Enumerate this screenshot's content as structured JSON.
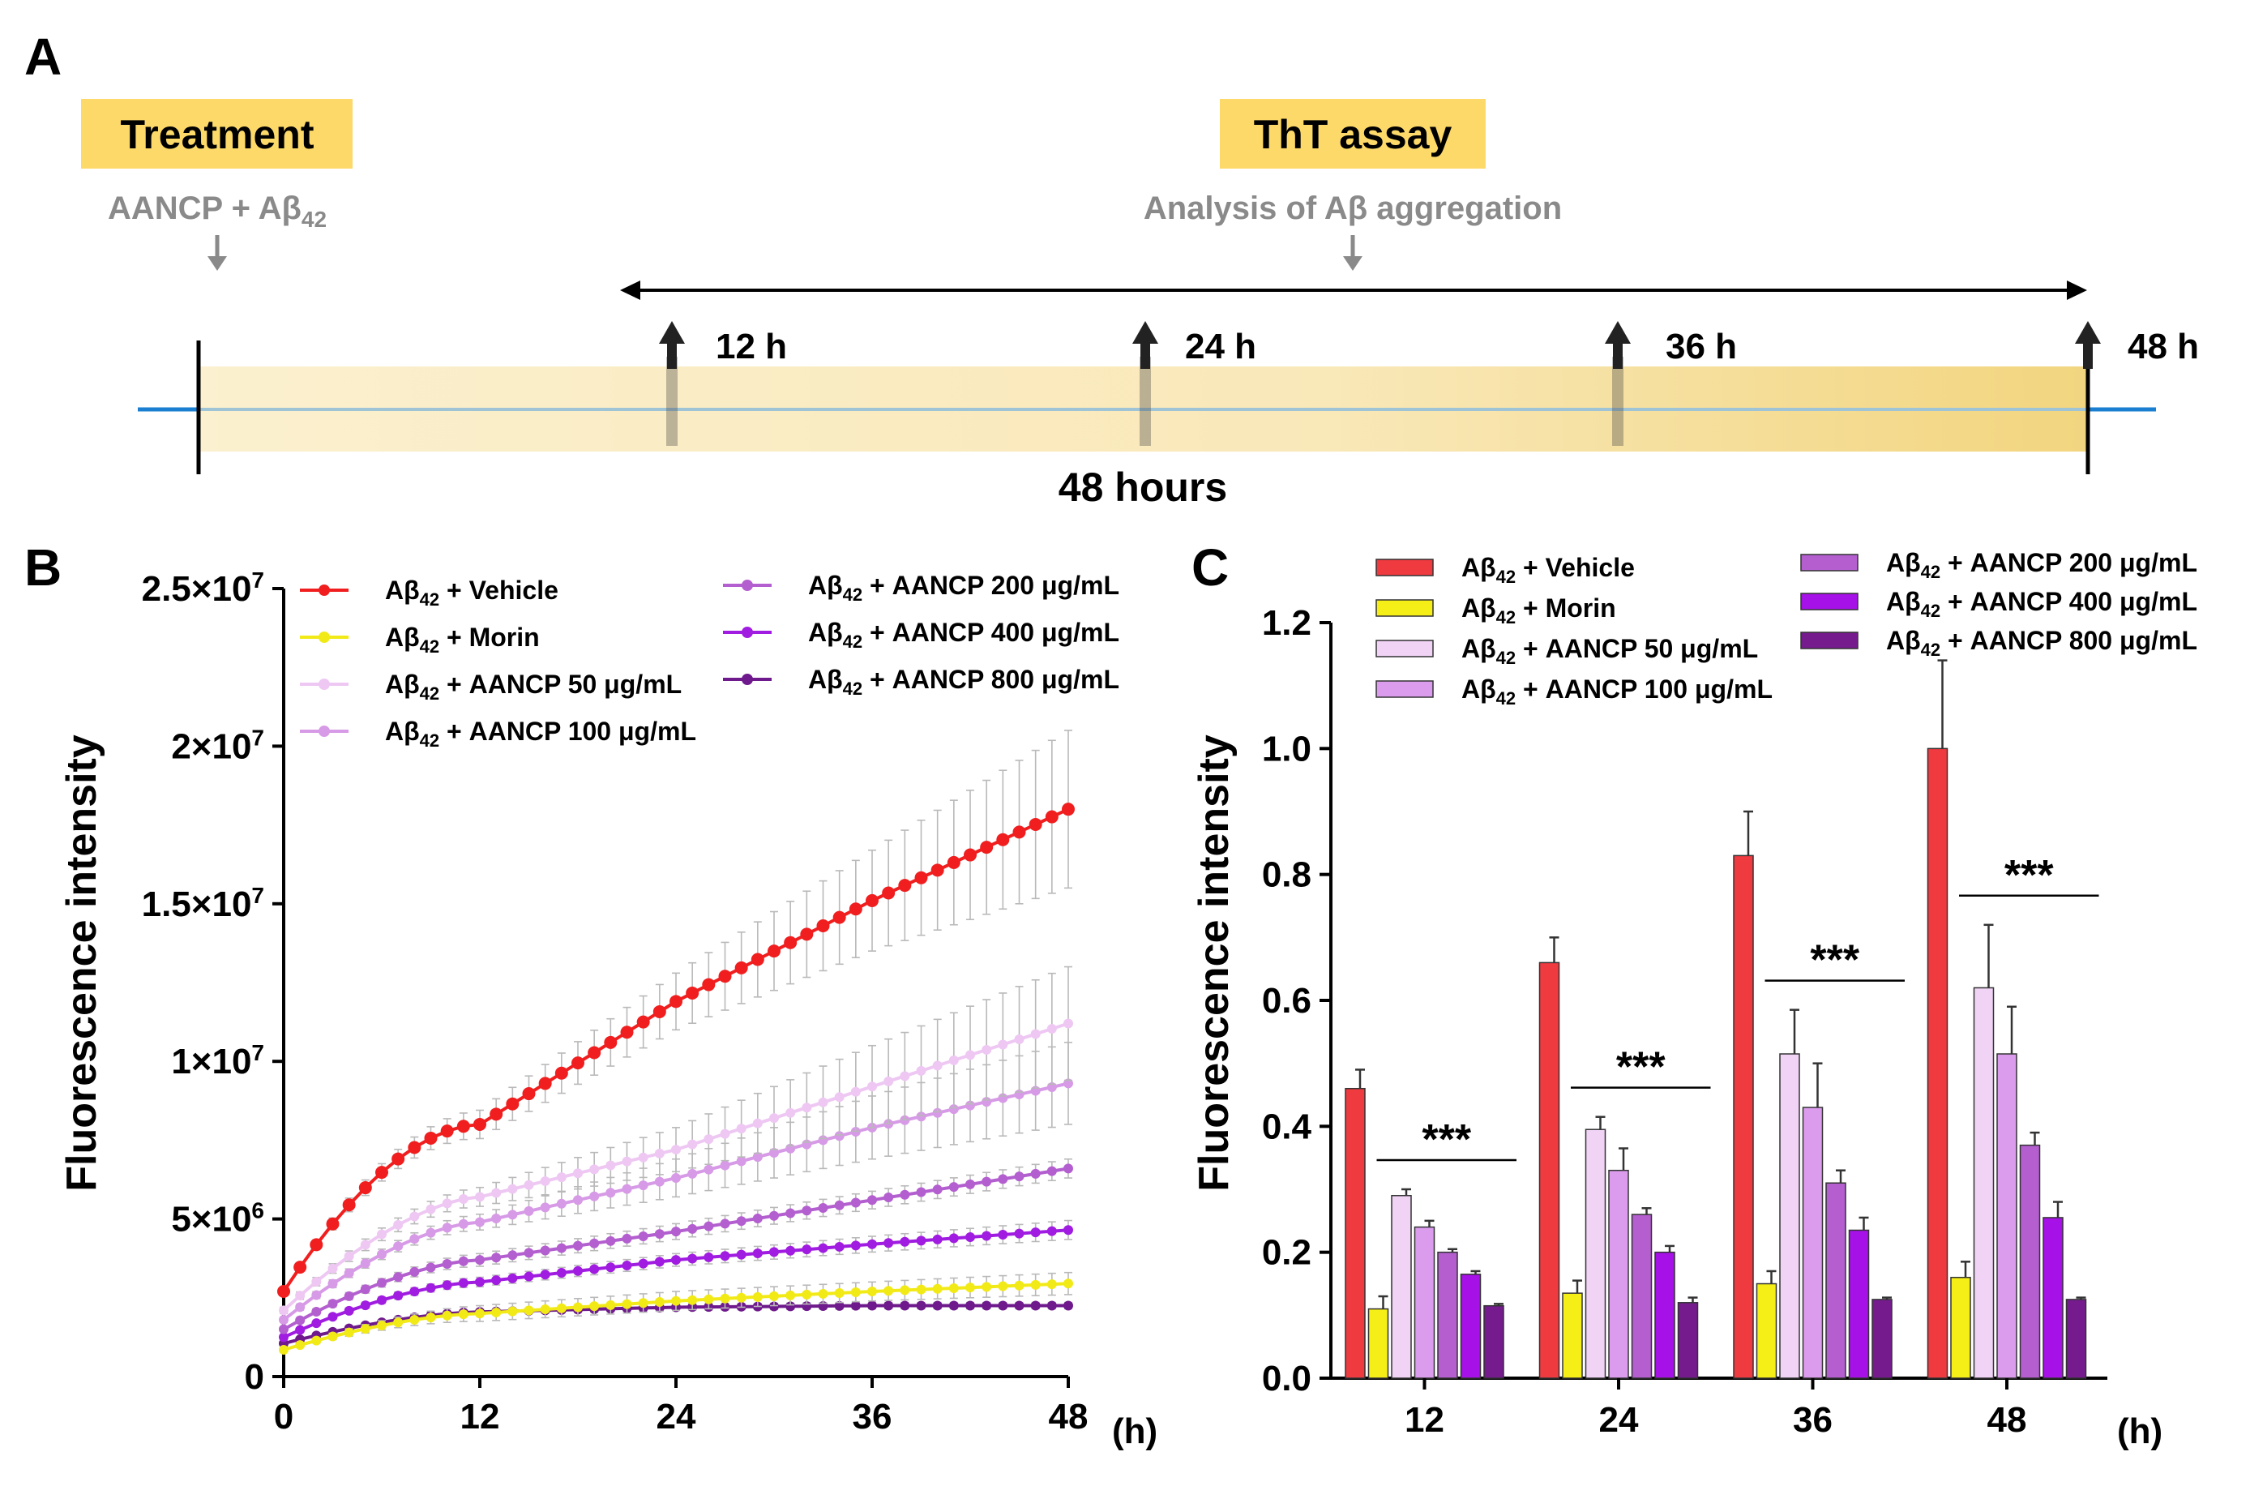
{
  "panel_a": {
    "letter": "A",
    "treatment_label": "Treatment",
    "treatment_note_main": "AANCP + Aβ",
    "treatment_note_sub": "42",
    "assay_label": "ThT assay",
    "assay_note": "Analysis of Aβ aggregation",
    "duration_label": "48 hours",
    "timepoints": [
      "12 h",
      "24 h",
      "36 h",
      "48 h"
    ],
    "colors": {
      "highlight": "#fdd96a",
      "bar_light": "#fbf0cf",
      "bar_dark": "#f2d57f",
      "baseline": "#1a7fd0",
      "gray": "#8a8a8a"
    }
  },
  "chart_data": [
    {
      "id": "B",
      "type": "line",
      "letter": "B",
      "title": "",
      "xlabel": "(h)",
      "ylabel": "Fluorescence intensity",
      "x": [
        0,
        12,
        24,
        36,
        48
      ],
      "xticks": [
        "0",
        "12",
        "24",
        "36",
        "48"
      ],
      "xlim": [
        0,
        48
      ],
      "ylim": [
        0,
        25000000
      ],
      "yticks": [
        {
          "value": 0,
          "base": "0",
          "exp": ""
        },
        {
          "value": 5000000,
          "base": "5×10",
          "exp": "6"
        },
        {
          "value": 10000000,
          "base": "1×10",
          "exp": "7"
        },
        {
          "value": 15000000,
          "base": "1.5×10",
          "exp": "7"
        },
        {
          "value": 20000000,
          "base": "2×10",
          "exp": "7"
        },
        {
          "value": 25000000,
          "base": "2.5×10",
          "exp": "7"
        }
      ],
      "n_points": 49,
      "series": [
        {
          "name": "Vehicle",
          "label_pre": "Aβ",
          "label_sub": "42",
          "label_post": " + Vehicle",
          "color": "#f01e1e",
          "values": [
            2700000,
            8000000,
            11900000,
            15100000,
            18000000
          ],
          "err": [
            100000,
            450000,
            900000,
            1600000,
            2500000
          ]
        },
        {
          "name": "Morin",
          "label_pre": "Aβ",
          "label_sub": "42",
          "label_post": " + Morin",
          "color": "#f2ea16",
          "values": [
            850000,
            2000000,
            2400000,
            2700000,
            2950000
          ],
          "err": [
            50000,
            250000,
            300000,
            300000,
            350000
          ]
        },
        {
          "name": "AANCP 50",
          "label_pre": "Aβ",
          "label_sub": "42",
          "label_post": " + AANCP 50 μg/mL",
          "color": "#eec8f3",
          "values": [
            2100000,
            5700000,
            7200000,
            9200000,
            11200000
          ],
          "err": [
            100000,
            300000,
            700000,
            1300000,
            1800000
          ]
        },
        {
          "name": "AANCP 100",
          "label_pre": "Aβ",
          "label_sub": "42",
          "label_post": " + AANCP 100 μg/mL",
          "color": "#d79ae6",
          "values": [
            1800000,
            4900000,
            6300000,
            7900000,
            9300000
          ],
          "err": [
            80000,
            250000,
            600000,
            1000000,
            1300000
          ]
        },
        {
          "name": "AANCP 200",
          "label_pre": "Aβ",
          "label_sub": "42",
          "label_post": " + AANCP 200 μg/mL",
          "color": "#b35fcf",
          "values": [
            1500000,
            3700000,
            4600000,
            5600000,
            6600000
          ],
          "err": [
            70000,
            200000,
            250000,
            280000,
            300000
          ]
        },
        {
          "name": "AANCP 400",
          "label_pre": "Aβ",
          "label_sub": "42",
          "label_post": " + AANCP 400 μg/mL",
          "color": "#a01ce0",
          "values": [
            1250000,
            3000000,
            3700000,
            4200000,
            4650000
          ],
          "err": [
            60000,
            150000,
            200000,
            250000,
            300000
          ]
        },
        {
          "name": "AANCP 800",
          "label_pre": "Aβ",
          "label_sub": "42",
          "label_post": " + AANCP 800 μg/mL",
          "color": "#6e198c",
          "values": [
            1050000,
            2050000,
            2200000,
            2250000,
            2250000
          ],
          "err": [
            40000,
            80000,
            100000,
            100000,
            100000
          ]
        }
      ]
    },
    {
      "id": "C",
      "type": "bar",
      "letter": "C",
      "title": "",
      "xlabel": "(h)",
      "ylabel": "Fluorescence intensity",
      "categories": [
        "12",
        "24",
        "36",
        "48"
      ],
      "ylim": [
        0,
        1.2
      ],
      "yticks": [
        "0.0",
        "0.2",
        "0.4",
        "0.6",
        "0.8",
        "1.0",
        "1.2"
      ],
      "significance": "***",
      "series": [
        {
          "name": "Vehicle",
          "label_pre": "Aβ",
          "label_sub": "42",
          "label_post": " + Vehicle",
          "color": "#ef3a3f",
          "values": [
            0.46,
            0.66,
            0.83,
            1.0
          ],
          "err": [
            0.03,
            0.04,
            0.07,
            0.14
          ]
        },
        {
          "name": "Morin",
          "label_pre": "Aβ",
          "label_sub": "42",
          "label_post": " + Morin",
          "color": "#f5ee17",
          "values": [
            0.11,
            0.135,
            0.15,
            0.16
          ],
          "err": [
            0.02,
            0.02,
            0.02,
            0.025
          ]
        },
        {
          "name": "AANCP 50",
          "label_pre": "Aβ",
          "label_sub": "42",
          "label_post": " + AANCP 50 μg/mL",
          "color": "#f0d3f5",
          "values": [
            0.29,
            0.395,
            0.515,
            0.62
          ],
          "err": [
            0.01,
            0.02,
            0.07,
            0.1
          ]
        },
        {
          "name": "AANCP 100",
          "label_pre": "Aβ",
          "label_sub": "42",
          "label_post": " + AANCP 100 μg/mL",
          "color": "#dc9cee",
          "values": [
            0.24,
            0.33,
            0.43,
            0.515
          ],
          "err": [
            0.01,
            0.035,
            0.07,
            0.075
          ]
        },
        {
          "name": "AANCP 200",
          "label_pre": "Aβ",
          "label_sub": "42",
          "label_post": " + AANCP 200 μg/mL",
          "color": "#b45ed0",
          "values": [
            0.2,
            0.26,
            0.31,
            0.37
          ],
          "err": [
            0.005,
            0.01,
            0.02,
            0.02
          ]
        },
        {
          "name": "AANCP 400",
          "label_pre": "Aβ",
          "label_sub": "42",
          "label_post": " + AANCP 400 μg/mL",
          "color": "#a511e6",
          "values": [
            0.165,
            0.2,
            0.235,
            0.255
          ],
          "err": [
            0.005,
            0.01,
            0.02,
            0.025
          ]
        },
        {
          "name": "AANCP 800",
          "label_pre": "Aβ",
          "label_sub": "42",
          "label_post": " + AANCP 800 μg/mL",
          "color": "#751b8e",
          "values": [
            0.115,
            0.12,
            0.125,
            0.125
          ],
          "err": [
            0.003,
            0.008,
            0.003,
            0.003
          ]
        }
      ]
    }
  ]
}
